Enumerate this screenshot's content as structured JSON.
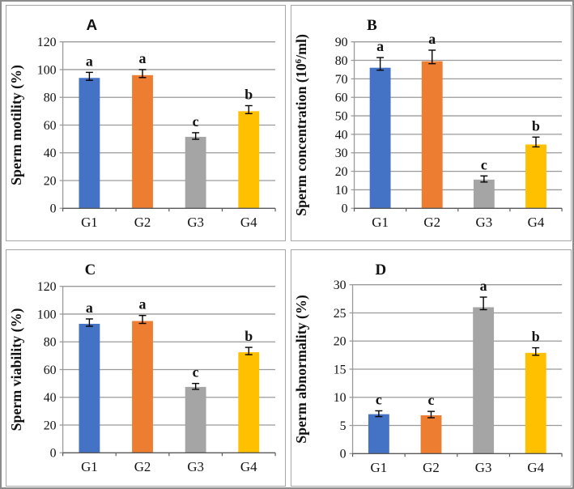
{
  "figure": {
    "description": "Four-panel bar chart figure of sperm parameters for groups G1-G4",
    "background_color": "#ffffff",
    "gridline_color": "#9a9a9a",
    "axis_color": "#9a9a9a",
    "x_axis_color": "#595959",
    "error_bar_color": "#000000",
    "text_color": "#111111",
    "bar_colors": [
      "#4472C4",
      "#ED7D31",
      "#A5A5A5",
      "#FFC000"
    ]
  },
  "chart_data": [
    {
      "type": "bar",
      "panel_label": "A",
      "panel_label_font": "sans",
      "title": "",
      "xlabel": "",
      "ylabel_parts": [
        {
          "t": "Sperm motility (%)"
        }
      ],
      "categories": [
        "G1",
        "G2",
        "G3",
        "G4"
      ],
      "values": [
        94,
        96,
        51.5,
        70
      ],
      "errors": [
        4,
        4,
        3,
        4
      ],
      "sig_letters": [
        "a",
        "a",
        "c",
        "b"
      ],
      "ylim": [
        0,
        120
      ],
      "ystep": 20,
      "grid": true,
      "legend": "none"
    },
    {
      "type": "bar",
      "panel_label": "B",
      "panel_label_font": "serif",
      "title": "",
      "xlabel": "",
      "ylabel_parts": [
        {
          "t": "Sperm concentration (10"
        },
        {
          "t": "6",
          "sup": true
        },
        {
          "t": "/ml)"
        }
      ],
      "categories": [
        "G1",
        "G2",
        "G3",
        "G4"
      ],
      "values": [
        76,
        79.5,
        15.5,
        34.5
      ],
      "errors": [
        5.5,
        6,
        2,
        4
      ],
      "sig_letters": [
        "a",
        "a",
        "c",
        "b"
      ],
      "ylim": [
        0,
        90
      ],
      "ystep": 10,
      "grid": true,
      "legend": "none"
    },
    {
      "type": "bar",
      "panel_label": "C",
      "panel_label_font": "serif",
      "title": "",
      "xlabel": "",
      "ylabel_parts": [
        {
          "t": "Sperm viability (%)"
        }
      ],
      "categories": [
        "G1",
        "G2",
        "G3",
        "G4"
      ],
      "values": [
        93,
        95,
        47.5,
        72.5
      ],
      "errors": [
        3.5,
        4,
        2.5,
        3.5
      ],
      "sig_letters": [
        "a",
        "a",
        "c",
        "b"
      ],
      "ylim": [
        0,
        120
      ],
      "ystep": 20,
      "grid": true,
      "legend": "none"
    },
    {
      "type": "bar",
      "panel_label": "D",
      "panel_label_font": "serif",
      "title": "",
      "xlabel": "",
      "ylabel_parts": [
        {
          "t": "Sperm abnormality (%)"
        }
      ],
      "categories": [
        "G1",
        "G2",
        "G3",
        "G4"
      ],
      "values": [
        7,
        6.8,
        26,
        17.9
      ],
      "errors": [
        0.6,
        0.7,
        1.8,
        0.9
      ],
      "sig_letters": [
        "c",
        "c",
        "a",
        "b"
      ],
      "ylim": [
        0,
        30
      ],
      "ystep": 5,
      "grid": true,
      "legend": "none"
    }
  ]
}
